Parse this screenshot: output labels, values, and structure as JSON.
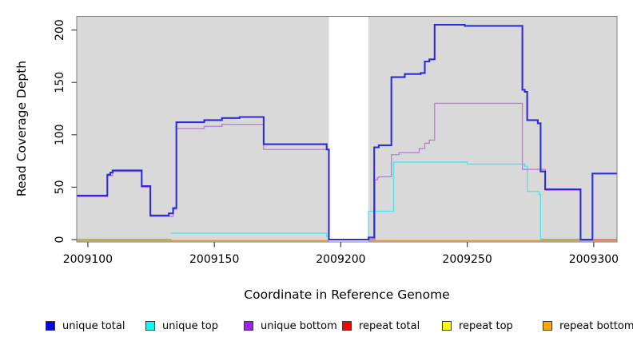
{
  "chart_data": {
    "type": "step-line",
    "title": "",
    "xlabel": "Coordinate in Reference Genome",
    "ylabel": "Read Coverage Depth",
    "plot_bg_color": "#d9d9d9",
    "border_color": "#7f7f7f",
    "x_range": [
      2009095.6,
      2009309.2
    ],
    "y_range": [
      0,
      213
    ],
    "grid": "off",
    "legend_position": "bottom",
    "x_ticks": [
      {
        "value": 2009100,
        "label": "2009100"
      },
      {
        "value": 2009150,
        "label": "2009150"
      },
      {
        "value": 2009200,
        "label": "2009200"
      },
      {
        "value": 2009250,
        "label": "2009250"
      },
      {
        "value": 2009300,
        "label": "2009300"
      }
    ],
    "y_ticks": [
      {
        "value": 0,
        "label": "0"
      },
      {
        "value": 50,
        "label": "50"
      },
      {
        "value": 100,
        "label": "100"
      },
      {
        "value": 150,
        "label": "150"
      },
      {
        "value": 200,
        "label": "200"
      }
    ],
    "gap_band": {
      "x_start": 2009195.3,
      "x_end": 2009210.9,
      "color": "#ffffff",
      "note": "no-data white band"
    },
    "series": [
      {
        "name": "repeat top",
        "color": "#f2f230",
        "line_width": 1.4,
        "z": 0,
        "end_x": 2009309.2,
        "points": [
          [
            2009095.6,
            0
          ]
        ]
      },
      {
        "name": "repeat bottom",
        "color": "#ff9800",
        "line_width": 1.6,
        "z": 1,
        "end_x": 2009309.2,
        "points": [
          [
            2009095.6,
            0
          ]
        ]
      },
      {
        "name": "unique top",
        "color": "#4fe3ea",
        "line_width": 1.4,
        "z": 3,
        "end_x": 2009279.0,
        "points": [
          [
            2009132.8,
            6
          ],
          [
            2009194.4,
            3
          ],
          [
            2009195.3,
            0
          ],
          [
            2009211.0,
            27
          ],
          [
            2009220.9,
            74
          ],
          [
            2009250.0,
            72
          ],
          [
            2009272.7,
            70
          ],
          [
            2009273.7,
            46
          ],
          [
            2009278.4,
            43
          ],
          [
            2009279.0,
            0
          ]
        ]
      },
      {
        "name": "unique bottom",
        "color": "#bd7edb",
        "line_width": 1.4,
        "z": 4,
        "end_x": 2009295.0,
        "points": [
          [
            2009095.6,
            41
          ],
          [
            2009107.7,
            61
          ],
          [
            2009109.8,
            65
          ],
          [
            2009121.3,
            50
          ],
          [
            2009124.7,
            22
          ],
          [
            2009133.7,
            29
          ],
          [
            2009135.0,
            106
          ],
          [
            2009146.0,
            108
          ],
          [
            2009153.0,
            110
          ],
          [
            2009169.5,
            86
          ],
          [
            2009195.3,
            0
          ],
          [
            2009213.5,
            57
          ],
          [
            2009214.5,
            59
          ],
          [
            2009215.0,
            60
          ],
          [
            2009220.0,
            81
          ],
          [
            2009223.0,
            83
          ],
          [
            2009231.0,
            87
          ],
          [
            2009233.2,
            92
          ],
          [
            2009235.0,
            95
          ],
          [
            2009237.1,
            130
          ],
          [
            2009271.8,
            67
          ],
          [
            2009280.8,
            47
          ],
          [
            2009294.8,
            0
          ]
        ]
      },
      {
        "name": "unique total",
        "color": "#2d2dd8",
        "line_width": 2.1,
        "z": 5,
        "end_x": 2009309.2,
        "points": [
          [
            2009095.6,
            42
          ],
          [
            2009107.7,
            62
          ],
          [
            2009108.9,
            64
          ],
          [
            2009109.8,
            66
          ],
          [
            2009121.3,
            51
          ],
          [
            2009124.7,
            23
          ],
          [
            2009132.0,
            25
          ],
          [
            2009133.7,
            30
          ],
          [
            2009135.0,
            112
          ],
          [
            2009146.0,
            114
          ],
          [
            2009153.0,
            116
          ],
          [
            2009160.0,
            117
          ],
          [
            2009169.5,
            91
          ],
          [
            2009194.4,
            86
          ],
          [
            2009195.3,
            0
          ],
          [
            2009211.0,
            2
          ],
          [
            2009213.2,
            88
          ],
          [
            2009215.0,
            90
          ],
          [
            2009220.0,
            155
          ],
          [
            2009225.3,
            158
          ],
          [
            2009231.6,
            159
          ],
          [
            2009233.2,
            170
          ],
          [
            2009235.0,
            172
          ],
          [
            2009237.1,
            205
          ],
          [
            2009249.0,
            204
          ],
          [
            2009271.8,
            143
          ],
          [
            2009272.7,
            141
          ],
          [
            2009273.7,
            114
          ],
          [
            2009277.9,
            111
          ],
          [
            2009279.0,
            65
          ],
          [
            2009280.8,
            48
          ],
          [
            2009294.8,
            0
          ],
          [
            2009299.5,
            63
          ]
        ]
      },
      {
        "name": "repeat total",
        "color": "#e0697c",
        "line_width": 1.5,
        "z": 6,
        "end_x": 2009309.2,
        "points": [
          [
            2009299.8,
            0
          ]
        ]
      }
    ],
    "baseline_overlap_segments": [
      {
        "x_start": 2009095.6,
        "x_end": 2009133.0,
        "value": 0,
        "color": "#76c893",
        "note": "cyan+yellow overlap"
      },
      {
        "x_start": 2009279.0,
        "x_end": 2009295.0,
        "value": 0,
        "color": "#76c893",
        "note": "cyan+yellow overlap"
      }
    ],
    "legend": {
      "items": [
        {
          "label": "unique total",
          "color": "#0000ee"
        },
        {
          "label": "unique top",
          "color": "#00ffff"
        },
        {
          "label": "unique bottom",
          "color": "#a020f0"
        },
        {
          "label": "repeat total",
          "color": "#ff0000"
        },
        {
          "label": "repeat top",
          "color": "#ffff00"
        },
        {
          "label": "repeat bottom",
          "color": "#ffa500"
        }
      ]
    }
  }
}
